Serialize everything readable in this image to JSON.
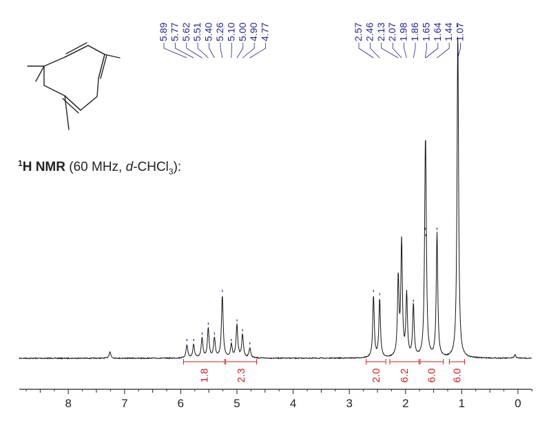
{
  "chart_data": {
    "type": "line",
    "title_parts": {
      "superscript": "1",
      "nucleus": "H NMR",
      "freq": "(60 MHz, ",
      "solvent_prefix": "d",
      "solvent_main": "-CHCl",
      "solvent_subscript": "3",
      "suffix": "):"
    },
    "xlabel": "",
    "ylabel": "",
    "x_axis": {
      "min": -0.3,
      "max": 9.0,
      "reversed": true,
      "unit": "ppm",
      "ticks": [
        "8",
        "7",
        "6",
        "5",
        "4",
        "3",
        "2",
        "1",
        "0"
      ]
    },
    "peak_labels_left": [
      "5.89",
      "5.77",
      "5.62",
      "5.51",
      "5.40",
      "5.26",
      "5.10",
      "5.00",
      "4.90",
      "4.77"
    ],
    "peak_labels_right": [
      "2.57",
      "2.46",
      "2.13",
      "2.07",
      "1.98",
      "1.86",
      "1.65",
      "1.64",
      "1.44",
      "1.07"
    ],
    "integrals": [
      {
        "from": 5.95,
        "to": 5.22,
        "value": "1.8"
      },
      {
        "from": 5.2,
        "to": 4.65,
        "value": "2.3"
      },
      {
        "from": 2.7,
        "to": 2.35,
        "value": "2.0"
      },
      {
        "from": 2.28,
        "to": 1.76,
        "value": "6.2"
      },
      {
        "from": 1.74,
        "to": 1.33,
        "value": "6.0"
      },
      {
        "from": 1.22,
        "to": 0.95,
        "value": "6.0"
      }
    ],
    "series": [
      {
        "peaks": [
          {
            "ppm": 7.26,
            "height": 0.02
          },
          {
            "ppm": 5.89,
            "height": 0.04
          },
          {
            "ppm": 5.77,
            "height": 0.04
          },
          {
            "ppm": 5.62,
            "height": 0.06
          },
          {
            "ppm": 5.51,
            "height": 0.09
          },
          {
            "ppm": 5.4,
            "height": 0.06
          },
          {
            "ppm": 5.26,
            "height": 0.19
          },
          {
            "ppm": 5.1,
            "height": 0.04
          },
          {
            "ppm": 5.0,
            "height": 0.1
          },
          {
            "ppm": 4.9,
            "height": 0.07
          },
          {
            "ppm": 4.77,
            "height": 0.03
          },
          {
            "ppm": 2.57,
            "height": 0.19
          },
          {
            "ppm": 2.46,
            "height": 0.18
          },
          {
            "ppm": 2.13,
            "height": 0.24
          },
          {
            "ppm": 2.07,
            "height": 0.35
          },
          {
            "ppm": 1.98,
            "height": 0.19
          },
          {
            "ppm": 1.86,
            "height": 0.16
          },
          {
            "ppm": 1.65,
            "height": 0.38
          },
          {
            "ppm": 1.64,
            "height": 0.36
          },
          {
            "ppm": 1.44,
            "height": 0.38
          },
          {
            "ppm": 1.07,
            "height": 1.0
          },
          {
            "ppm": 0.05,
            "height": 0.01
          }
        ]
      }
    ],
    "colors": {
      "peak_labels": "#1f1f8f",
      "integrals": "#d61c1c",
      "spectrum": "#111111",
      "axis": "#222222"
    }
  }
}
